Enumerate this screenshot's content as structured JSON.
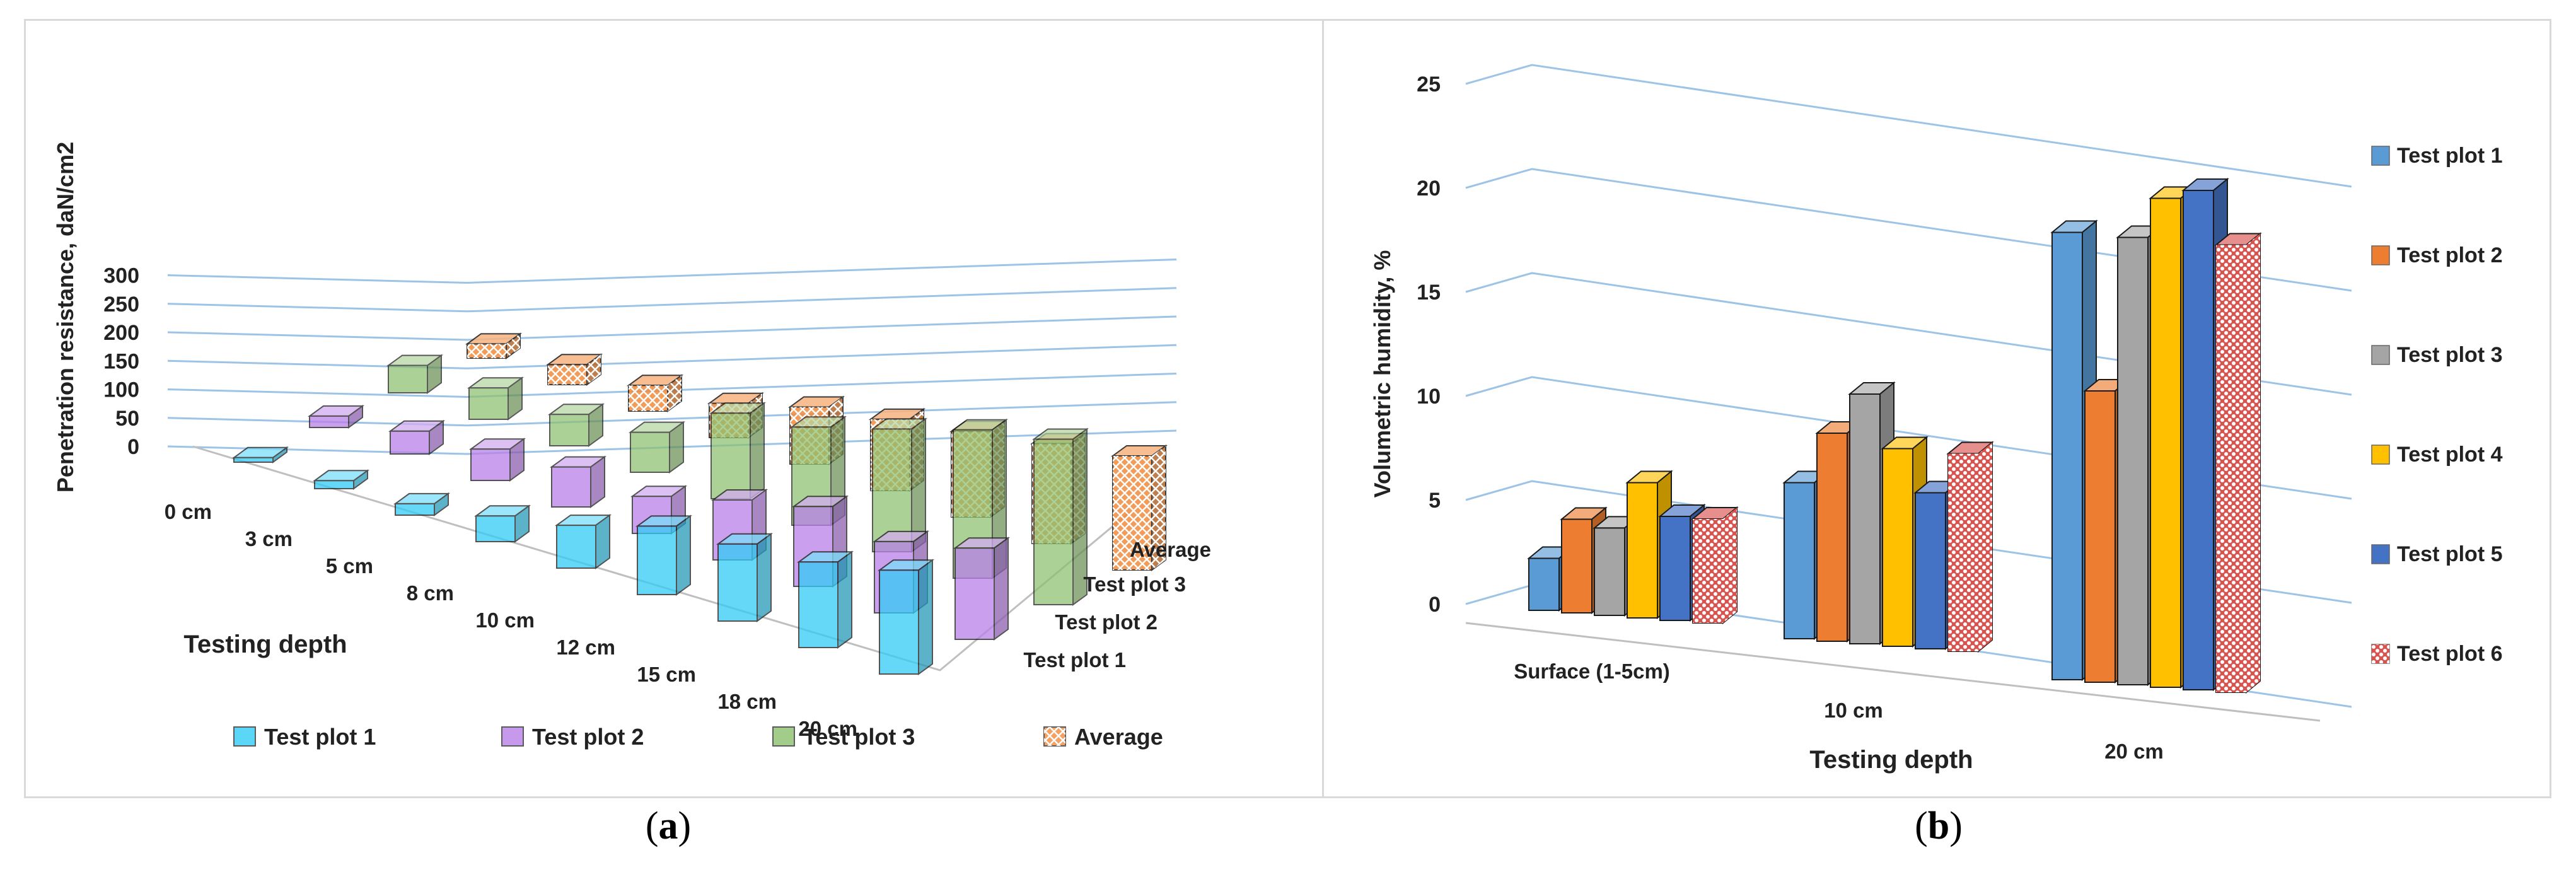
{
  "panels": [
    {
      "label": "(a)",
      "label_letter": "a",
      "chart_data": {
        "type": "bar",
        "ylabel": "Penetration resistance, daN/cm2",
        "xlabel": "Testing depth",
        "ylim": [
          0,
          300
        ],
        "yticks": [
          0,
          50,
          100,
          150,
          200,
          250,
          300
        ],
        "categories": [
          "0 cm",
          "3 cm",
          "5 cm",
          "8 cm",
          "10 cm",
          "12 cm",
          "15 cm",
          "18 cm",
          "20 cm"
        ],
        "depth_labels": [
          "Test plot 1",
          "Test plot 2",
          "Test plot 3",
          "Average"
        ],
        "series": [
          {
            "name": "Test plot 1",
            "values": [
              8,
              14,
              20,
              45,
              75,
              120,
              135,
              150,
              182
            ],
            "color": "#33ccf5"
          },
          {
            "name": "Test plot 2",
            "values": [
              20,
              40,
              55,
              70,
              65,
              105,
              140,
              125,
              160
            ],
            "color": "#b980e8"
          },
          {
            "name": "Test plot 3",
            "values": [
              48,
              55,
              55,
              70,
              150,
              172,
              215,
              260,
              290
            ],
            "color": "#8cc06e"
          },
          {
            "name": "Average",
            "values": [
              25,
              35,
              45,
              60,
              100,
              125,
              150,
              175,
              200
            ],
            "color": "#f28a3c"
          }
        ],
        "grid": true,
        "legend": "bottom"
      }
    },
    {
      "label": "(b)",
      "label_letter": "b",
      "chart_data": {
        "type": "bar",
        "ylabel": "Volumetric humidity, %",
        "xlabel": "Testing depth",
        "ylim": [
          0,
          25
        ],
        "yticks": [
          0,
          5,
          10,
          15,
          20,
          25
        ],
        "categories": [
          "Surface (1-5cm)",
          "10 cm",
          "20 cm"
        ],
        "series": [
          {
            "name": "Test plot 1",
            "values": [
              2.5,
              7.5,
              21.5
            ],
            "color": "#5b9bd5"
          },
          {
            "name": "Test plot 2",
            "values": [
              4.5,
              10,
              14
            ],
            "color": "#ed7d31"
          },
          {
            "name": "Test plot 3",
            "values": [
              4.2,
              12,
              21.5
            ],
            "color": "#a5a5a5"
          },
          {
            "name": "Test plot 4",
            "values": [
              6.5,
              9.5,
              23.5
            ],
            "color": "#ffc000"
          },
          {
            "name": "Test plot 5",
            "values": [
              5,
              7.5,
              24
            ],
            "color": "#4472c4"
          },
          {
            "name": "Test plot 6",
            "values": [
              5,
              9.5,
              21.5
            ],
            "color": "#d9534f"
          }
        ],
        "grid": true,
        "legend": "right"
      }
    }
  ]
}
